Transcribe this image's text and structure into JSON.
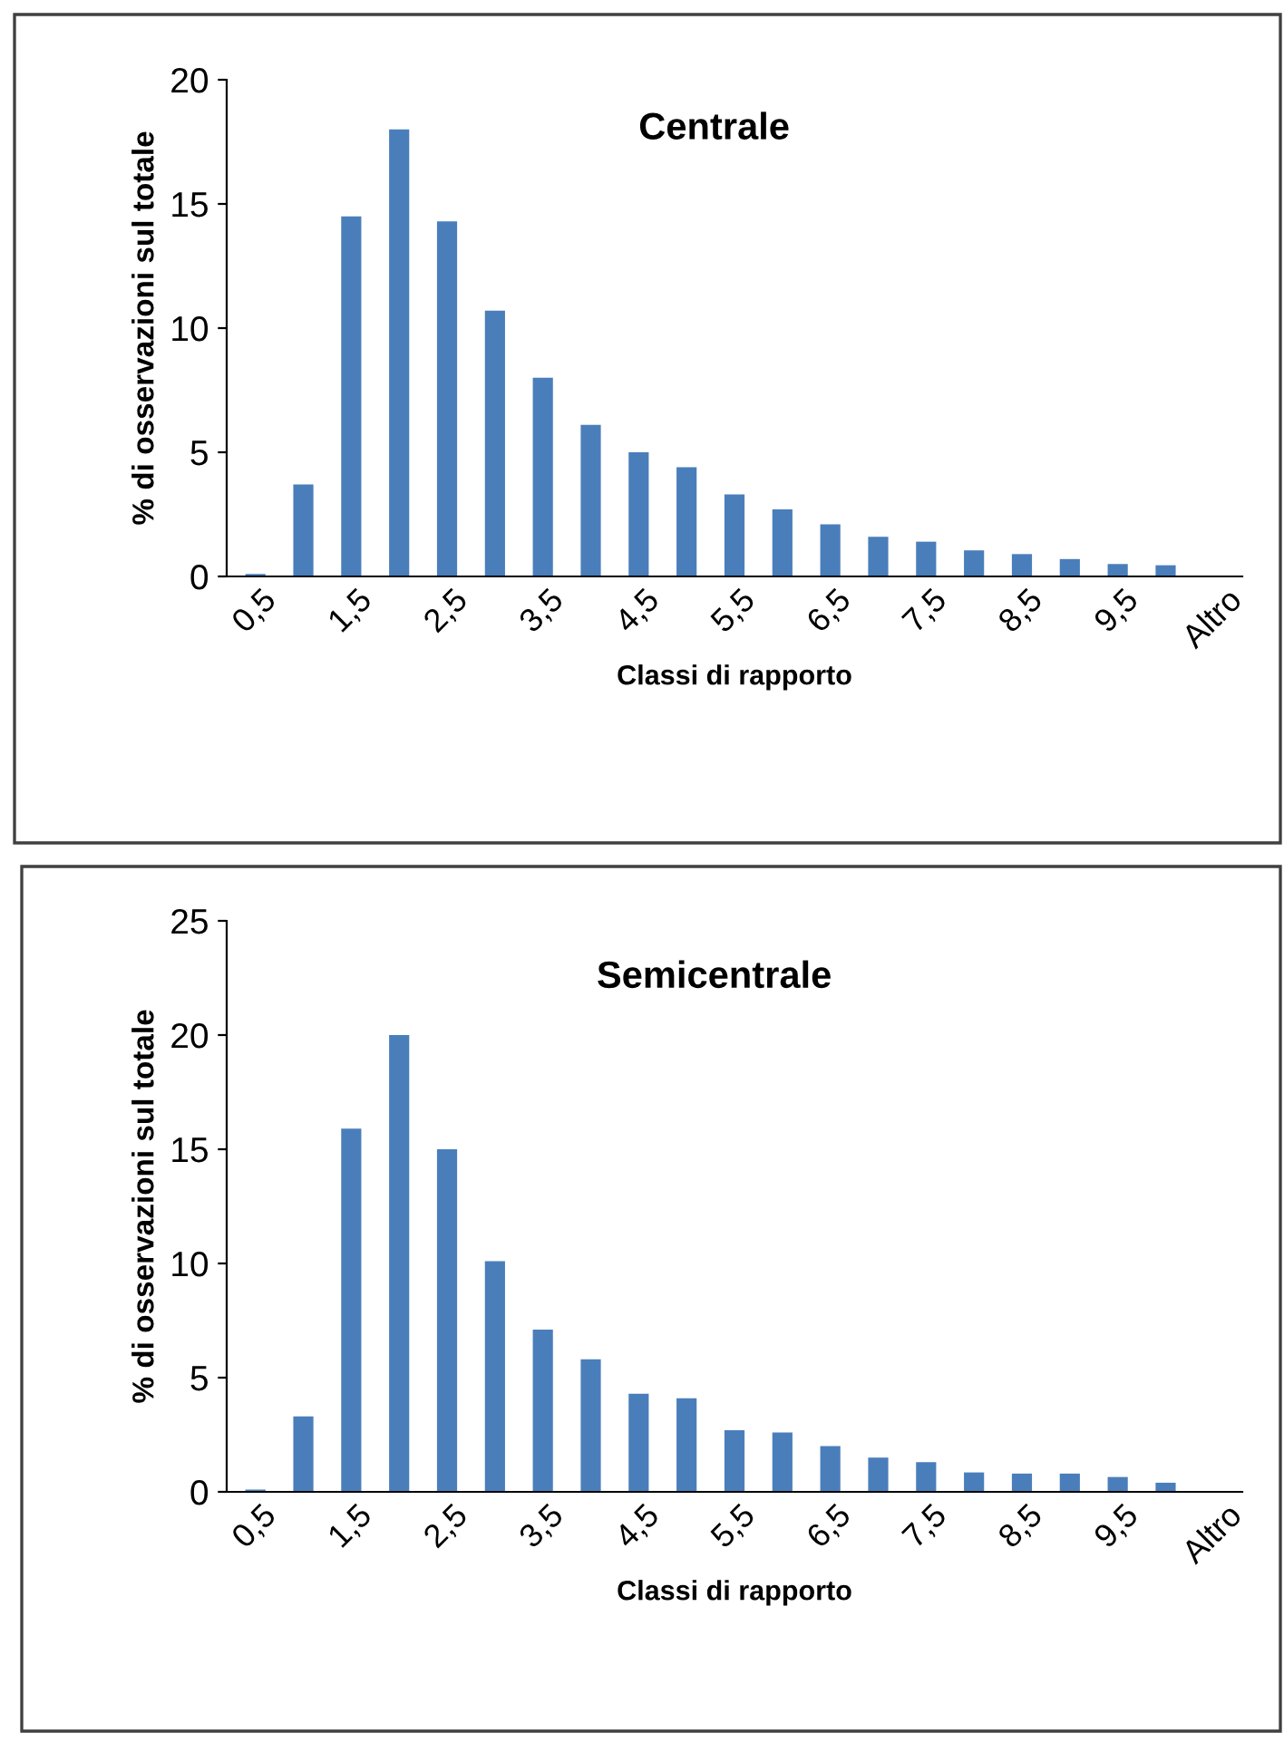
{
  "chart_data": [
    {
      "type": "bar",
      "title": "Centrale",
      "xlabel": "Classi di rapporto",
      "ylabel": "% di osservazioni sul totale",
      "categories": [
        "0,5",
        null,
        "1,5",
        null,
        "2,5",
        null,
        "3,5",
        null,
        "4,5",
        null,
        "5,5",
        null,
        "6,5",
        null,
        "7,5",
        null,
        "8,5",
        null,
        "9,5",
        null,
        "Altro"
      ],
      "values": [
        0.1,
        3.7,
        14.5,
        18,
        14.3,
        10.7,
        8,
        6.1,
        5,
        4.4,
        3.3,
        2.7,
        2.1,
        1.6,
        1.4,
        1.05,
        0.9,
        0.7,
        0.5,
        0.45,
        0
      ],
      "color": "#4a7ebb",
      "ylim": [
        0,
        20
      ],
      "yticks": [
        0,
        5,
        10,
        15,
        20
      ],
      "grid": false,
      "legend": false
    },
    {
      "type": "bar",
      "title": "Semicentrale",
      "xlabel": "Classi di rapporto",
      "ylabel": "% di osservazioni sul totale",
      "categories": [
        "0,5",
        null,
        "1,5",
        null,
        "2,5",
        null,
        "3,5",
        null,
        "4,5",
        null,
        "5,5",
        null,
        "6,5",
        null,
        "7,5",
        null,
        "8,5",
        null,
        "9,5",
        null,
        "Altro"
      ],
      "values": [
        0.1,
        3.3,
        15.9,
        20,
        15,
        10.1,
        7.1,
        5.8,
        4.3,
        4.1,
        2.7,
        2.6,
        2,
        1.5,
        1.3,
        0.85,
        0.8,
        0.8,
        0.65,
        0.4,
        0
      ],
      "color": "#4a7ebb",
      "ylim": [
        0,
        25
      ],
      "yticks": [
        0,
        5,
        10,
        15,
        20,
        25
      ],
      "grid": false,
      "legend": false
    }
  ]
}
